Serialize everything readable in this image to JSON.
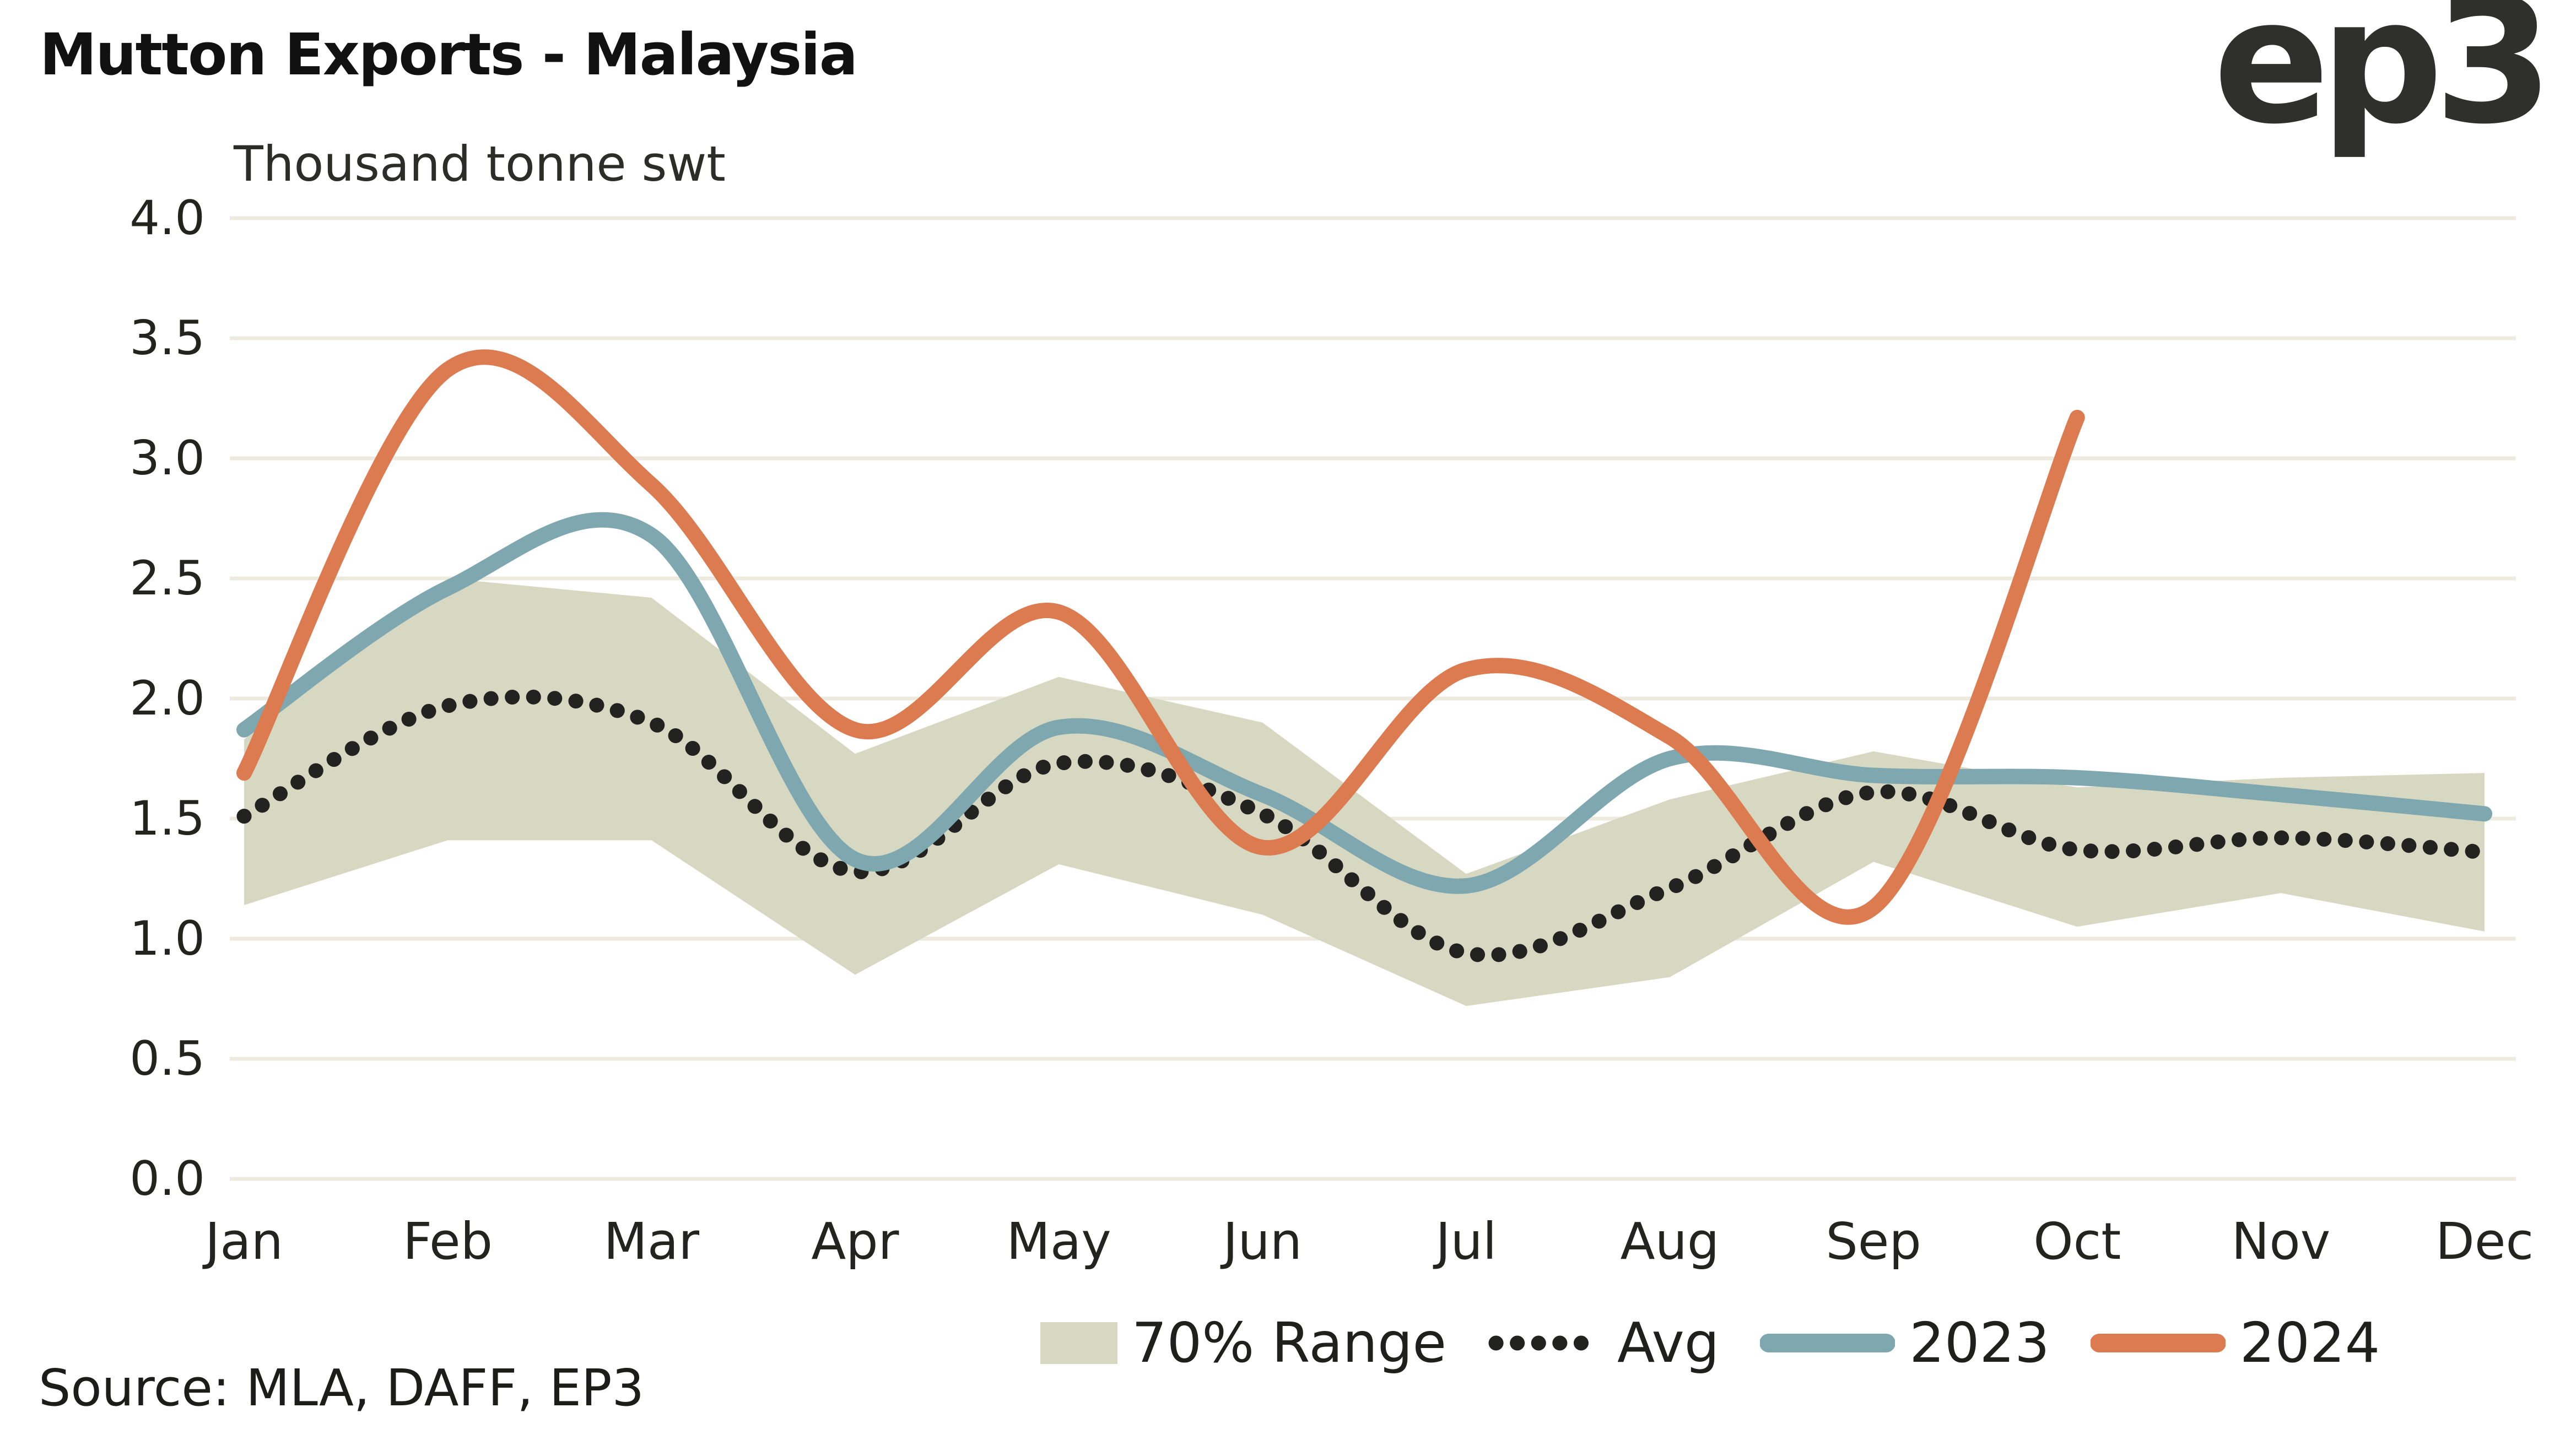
{
  "header": {
    "title": "Mutton Exports - Malaysia",
    "subtitle": "Thousand tonne swt",
    "logo_text": "ep3"
  },
  "footer": {
    "source": "Source: MLA, DAFF, EP3"
  },
  "colors": {
    "band": "#d7d8c2",
    "avg_dots": "#222220",
    "line_2023": "#7ea7af",
    "line_2024": "#dc7a50",
    "gridline": "#edebdf",
    "axis_text": "#23231f",
    "title_text": "#111111",
    "logo_text": "#2f2f2d"
  },
  "chart_data": {
    "type": "line",
    "title": "Mutton Exports - Malaysia",
    "ylabel": "Thousand tonne swt",
    "xlabel": "",
    "ylim": [
      0.0,
      4.0
    ],
    "yticks": [
      4.0,
      3.5,
      3.0,
      2.5,
      2.0,
      1.5,
      1.0,
      0.5,
      0.0
    ],
    "grid": "horizontal",
    "legend_position": "bottom",
    "categories": [
      "Jan",
      "Feb",
      "Mar",
      "Apr",
      "May",
      "Jun",
      "Jul",
      "Aug",
      "Sep",
      "Oct",
      "Nov",
      "Dec"
    ],
    "series": [
      {
        "name": "70% Range",
        "type": "band",
        "upper": [
          1.83,
          2.5,
          2.42,
          1.77,
          2.09,
          1.9,
          1.27,
          1.58,
          1.78,
          1.63,
          1.67,
          1.69
        ],
        "lower": [
          1.14,
          1.41,
          1.41,
          0.85,
          1.31,
          1.1,
          0.72,
          0.84,
          1.32,
          1.05,
          1.19,
          1.03
        ]
      },
      {
        "name": "Avg",
        "type": "dotted",
        "values": [
          1.51,
          1.97,
          1.9,
          1.28,
          1.73,
          1.52,
          0.94,
          1.21,
          1.61,
          1.37,
          1.42,
          1.36
        ]
      },
      {
        "name": "2023",
        "type": "line",
        "values": [
          1.87,
          2.46,
          2.68,
          1.33,
          1.88,
          1.6,
          1.22,
          1.75,
          1.68,
          1.67,
          1.6,
          1.52
        ]
      },
      {
        "name": "2024",
        "type": "line",
        "values": [
          1.69,
          3.37,
          2.89,
          1.87,
          2.36,
          1.38,
          2.12,
          1.84,
          1.13,
          3.17,
          null,
          null
        ]
      }
    ]
  }
}
